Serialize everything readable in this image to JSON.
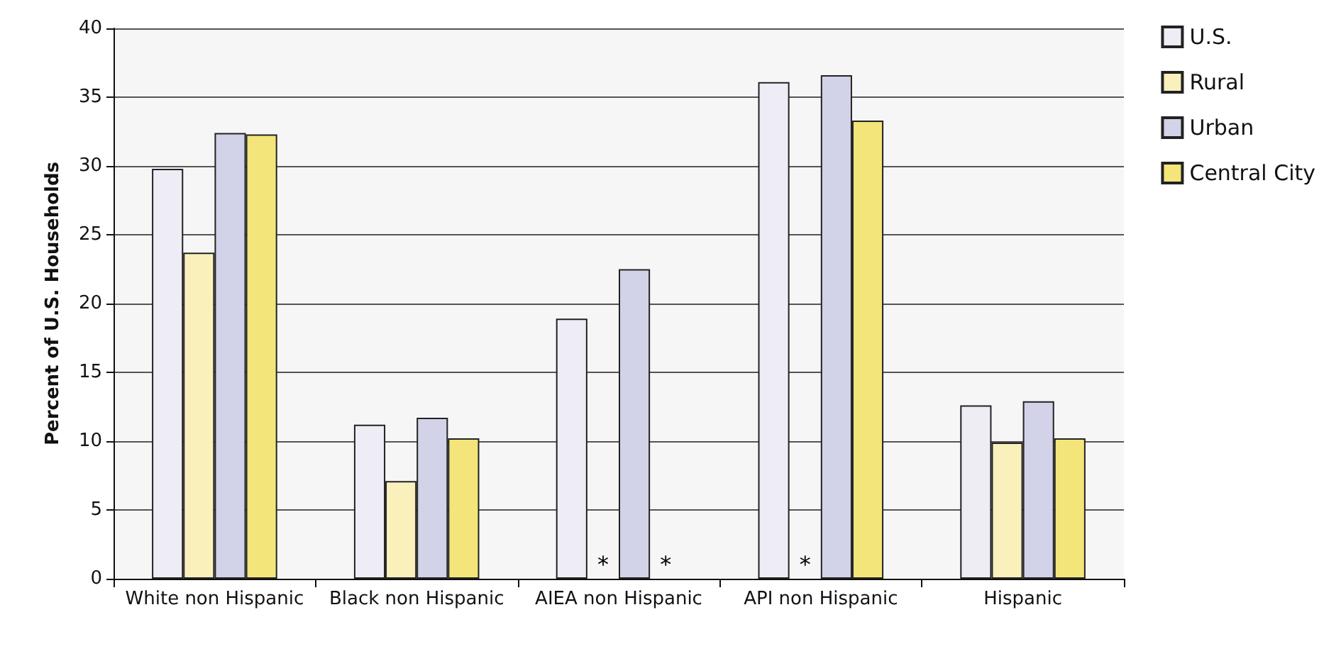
{
  "chart_data": {
    "type": "bar",
    "ylabel": "Percent of U.S. Households",
    "categories": [
      "White non Hispanic",
      "Black non Hispanic",
      "AIEA non Hispanic",
      "API non Hispanic",
      "Hispanic"
    ],
    "series": [
      {
        "name": "U.S.",
        "color": "#eeedf6",
        "values": [
          29.8,
          11.2,
          18.9,
          36.1,
          12.6
        ]
      },
      {
        "name": "Rural",
        "color": "#faf0bc",
        "values": [
          23.7,
          7.1,
          null,
          null,
          9.9
        ],
        "value_labels": [
          null,
          null,
          "*",
          "*",
          null
        ]
      },
      {
        "name": "Urban",
        "color": "#d2d3e8",
        "values": [
          32.4,
          11.7,
          22.5,
          36.6,
          12.9
        ]
      },
      {
        "name": "Central City",
        "color": "#f3e57a",
        "values": [
          32.3,
          10.2,
          null,
          33.3,
          10.2
        ],
        "value_labels": [
          null,
          null,
          "*",
          null,
          null
        ]
      }
    ],
    "ylim": [
      0,
      40
    ],
    "yticks": [
      0,
      5,
      10,
      15,
      20,
      25,
      30,
      35,
      40
    ],
    "grid": "y",
    "legend": "top right"
  }
}
